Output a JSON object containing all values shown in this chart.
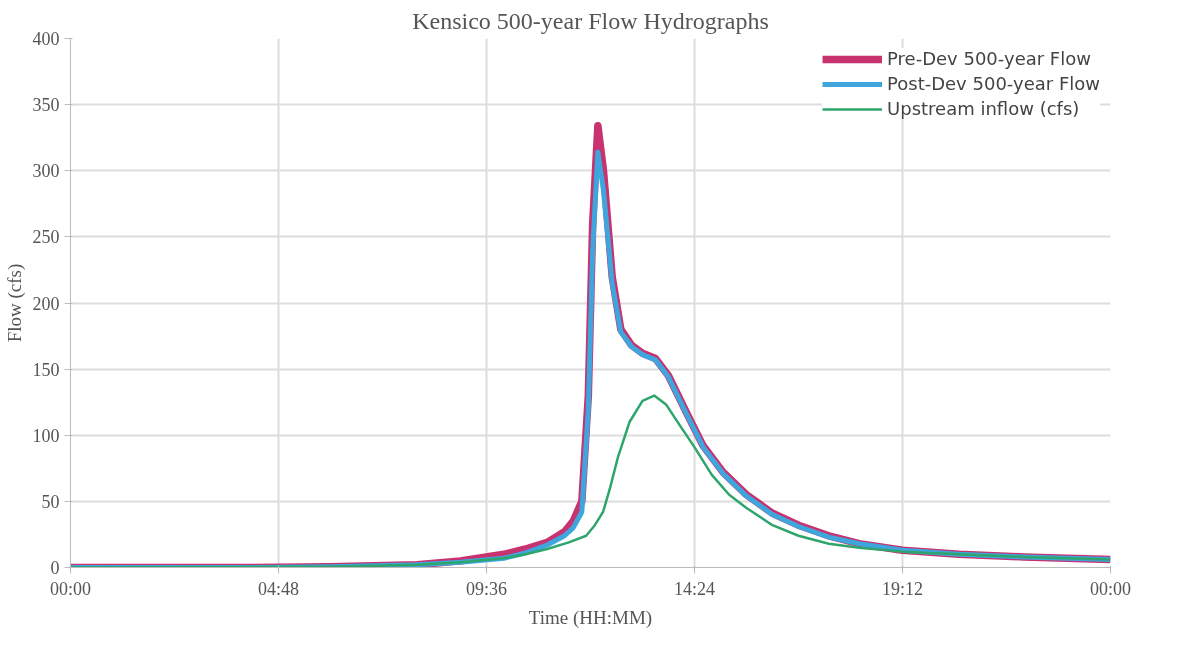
{
  "chart_data": {
    "type": "line",
    "title": "Kensico 500-year Flow Hydrographs",
    "xlabel": "Time (HH:MM)",
    "ylabel": "Flow (cfs)",
    "xlim": [
      0,
      24
    ],
    "xticks": [
      {
        "value": 0,
        "label": "00:00"
      },
      {
        "value": 4.8,
        "label": "04:48"
      },
      {
        "value": 9.6,
        "label": "09:36"
      },
      {
        "value": 14.4,
        "label": "14:24"
      },
      {
        "value": 19.2,
        "label": "19:12"
      },
      {
        "value": 24,
        "label": "00:00"
      }
    ],
    "ylim": [
      0,
      400
    ],
    "yticks": [
      0,
      50,
      100,
      150,
      200,
      250,
      300,
      350,
      400
    ],
    "grid": true,
    "legend": "top right",
    "marker": "none",
    "line_style": "solid",
    "series": [
      {
        "name": "Pre-Dev 500-year Flow",
        "color": "#c8326e",
        "x": [
          0,
          4,
          6,
          8,
          9,
          10,
          10.5,
          11,
          11.4,
          11.6,
          11.8,
          11.95,
          12.05,
          12.17,
          12.3,
          12.5,
          12.7,
          12.95,
          13.2,
          13.5,
          13.8,
          14.2,
          14.6,
          15.06,
          15.6,
          16.2,
          16.8,
          17.5,
          18.2,
          19.2,
          20.5,
          22,
          24
        ],
        "values": [
          0,
          0,
          0.5,
          2,
          5,
          10,
          14,
          19,
          27,
          35,
          50,
          130,
          260,
          334,
          300,
          220,
          180,
          168,
          162,
          158,
          145,
          118,
          92,
          72,
          55,
          41,
          32,
          24,
          18,
          13,
          10,
          8,
          6
        ]
      },
      {
        "name": "Post-Dev 500-year Flow",
        "color": "#3ea6dd",
        "x": [
          0,
          4,
          6,
          8,
          9,
          10,
          10.5,
          11,
          11.4,
          11.6,
          11.8,
          11.95,
          12.05,
          12.17,
          12.3,
          12.5,
          12.7,
          12.95,
          13.2,
          13.5,
          13.8,
          14.2,
          14.6,
          15.06,
          15.6,
          16.2,
          16.8,
          17.5,
          18.2,
          19.2,
          20.5,
          22,
          24
        ],
        "values": [
          0,
          0,
          0.5,
          2,
          4,
          7,
          11,
          17,
          24,
          30,
          42,
          120,
          240,
          314,
          285,
          215,
          178,
          167,
          161,
          157,
          144,
          117,
          91,
          71,
          54,
          40,
          31,
          23,
          18,
          13,
          10,
          8,
          6
        ]
      },
      {
        "name": "Upstream inflow (cfs)",
        "color": "#2ea56c",
        "x": [
          0,
          6,
          8,
          9,
          10,
          10.5,
          11,
          11.5,
          11.9,
          12.1,
          12.29,
          12.45,
          12.63,
          12.9,
          13.2,
          13.47,
          13.75,
          14.05,
          14.38,
          14.8,
          15.2,
          15.6,
          16.2,
          16.8,
          17.5,
          18.2,
          19.2,
          20.5,
          22,
          24
        ],
        "values": [
          0,
          0.5,
          2,
          4,
          7,
          10,
          14,
          19,
          24,
          32,
          42,
          60,
          83,
          110,
          126,
          130,
          123,
          108,
          92,
          70,
          55,
          45,
          32,
          24,
          18,
          15,
          12,
          10,
          8,
          6
        ]
      }
    ]
  }
}
